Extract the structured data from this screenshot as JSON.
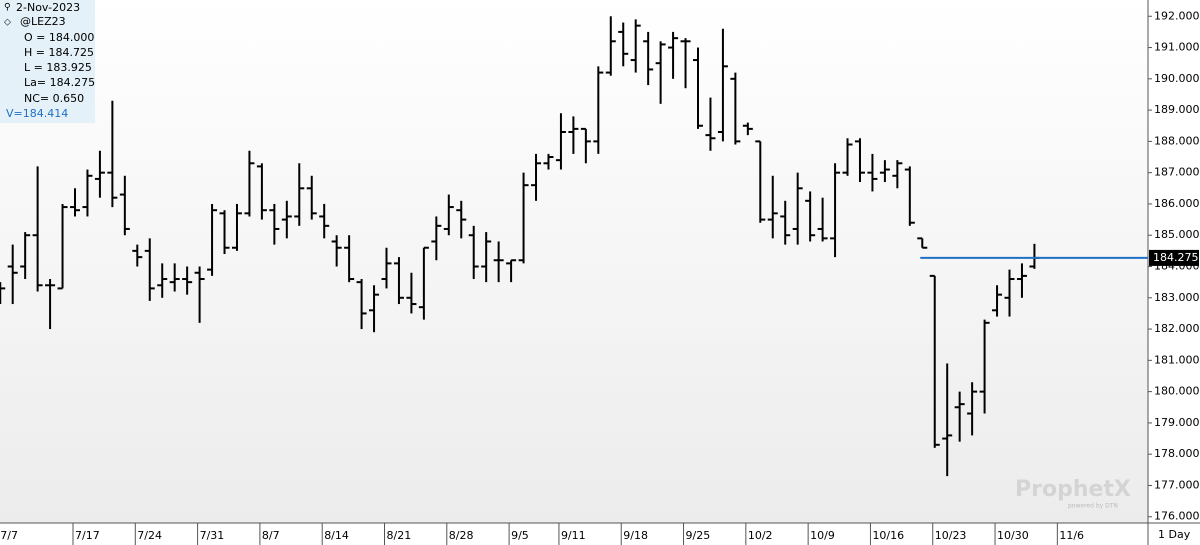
{
  "chart_data": {
    "type": "ohlc",
    "info": {
      "date": "2-Nov-2023",
      "symbol": "@LEZ23",
      "lines": [
        "O = 184.000",
        "H = 184.725",
        "L = 183.925",
        "La= 184.275",
        "NC= 0.650"
      ],
      "volume": "V=184.414"
    },
    "categories": [
      "7/7",
      null,
      null,
      null,
      null,
      null,
      "7/17",
      null,
      null,
      null,
      null,
      "7/24",
      null,
      null,
      null,
      null,
      "7/31",
      null,
      null,
      null,
      null,
      "8/7",
      null,
      null,
      null,
      null,
      "8/14",
      null,
      null,
      null,
      null,
      "8/21",
      null,
      null,
      null,
      null,
      "8/28",
      null,
      null,
      null,
      null,
      "9/5",
      null,
      null,
      null,
      "9/11",
      null,
      null,
      null,
      null,
      "9/18",
      null,
      null,
      null,
      null,
      "9/25",
      null,
      null,
      null,
      null,
      "10/2",
      null,
      null,
      null,
      null,
      "10/9",
      null,
      null,
      null,
      null,
      "10/16",
      null,
      null,
      null,
      null,
      "10/23",
      null,
      null,
      null,
      null,
      "10/30",
      null,
      null,
      null,
      null,
      "11/6"
    ],
    "series": {
      "color": "#000000",
      "open": [
        183.3,
        184.0,
        184.0,
        185.0,
        183.4,
        183.3,
        185.9,
        185.9,
        186.8,
        187.0,
        186.3,
        184.5,
        184.5,
        183.4,
        183.5,
        183.6,
        183.8,
        183.9,
        185.7,
        184.6,
        185.7,
        187.2,
        185.8,
        185.5,
        185.6,
        186.5,
        185.6,
        184.8,
        184.6,
        183.5,
        182.6,
        183.6,
        184.1,
        183.0,
        182.7,
        184.8,
        185.2,
        185.8,
        185.0,
        184.0,
        184.2,
        184.1,
        184.2,
        186.6,
        187.3,
        187.4,
        188.3,
        188.4,
        188.0,
        190.2,
        191.5,
        190.6,
        191.2,
        190.5,
        191.0,
        191.2,
        190.6,
        188.2,
        188.3,
        190.0,
        188.5,
        188.0,
        185.5,
        185.6,
        185.2,
        186.1,
        185.2,
        184.9,
        187.0,
        188.0,
        187.0,
        187.0,
        186.9,
        187.1,
        184.9,
        183.7,
        178.5,
        179.5,
        179.3,
        180.0,
        182.6,
        183.0,
        183.6,
        184.0,
        null,
        null
      ],
      "high": [
        183.5,
        184.7,
        185.1,
        187.2,
        183.6,
        186.0,
        186.5,
        187.1,
        187.7,
        189.3,
        186.9,
        184.7,
        184.9,
        184.1,
        184.1,
        184.0,
        184.0,
        186.0,
        185.8,
        186.0,
        187.7,
        187.3,
        186.0,
        186.1,
        187.3,
        186.9,
        186.0,
        185.0,
        185.0,
        183.6,
        183.4,
        184.6,
        184.3,
        183.8,
        184.6,
        185.6,
        186.3,
        186.1,
        185.3,
        185.1,
        184.8,
        184.2,
        187.0,
        187.6,
        187.6,
        188.9,
        188.8,
        188.4,
        190.4,
        192.0,
        191.8,
        191.9,
        191.5,
        191.2,
        191.5,
        191.3,
        191.0,
        189.4,
        191.6,
        190.2,
        188.6,
        188.0,
        186.9,
        186.1,
        187.0,
        186.4,
        186.2,
        187.3,
        188.1,
        188.1,
        187.6,
        187.4,
        187.4,
        187.2,
        184.9,
        183.7,
        180.9,
        180.0,
        180.3,
        182.3,
        183.4,
        183.9,
        184.1,
        184.725,
        null,
        null
      ],
      "low": [
        182.8,
        182.8,
        183.6,
        183.2,
        182.0,
        183.3,
        185.6,
        185.6,
        186.2,
        185.9,
        185.0,
        184.0,
        182.9,
        183.0,
        183.2,
        183.1,
        182.2,
        183.7,
        184.4,
        184.5,
        185.6,
        185.5,
        184.7,
        184.9,
        185.3,
        185.5,
        184.9,
        184.0,
        183.5,
        182.0,
        181.9,
        183.3,
        182.8,
        182.5,
        182.3,
        184.2,
        185.0,
        184.9,
        183.6,
        183.5,
        183.5,
        183.5,
        184.1,
        186.1,
        187.1,
        187.1,
        187.6,
        187.3,
        187.6,
        190.1,
        190.4,
        190.2,
        189.8,
        189.2,
        190.0,
        189.7,
        188.4,
        187.7,
        188.0,
        187.9,
        188.2,
        185.4,
        184.9,
        184.7,
        184.7,
        184.8,
        184.8,
        184.3,
        186.9,
        186.7,
        186.4,
        186.7,
        186.5,
        185.3,
        184.6,
        178.2,
        177.3,
        178.4,
        178.6,
        179.3,
        182.4,
        182.4,
        183.0,
        183.925,
        null,
        null
      ],
      "close": [
        183.3,
        183.8,
        185.0,
        183.4,
        183.4,
        185.9,
        185.8,
        186.9,
        187.0,
        186.2,
        185.2,
        184.3,
        183.3,
        183.6,
        183.6,
        183.5,
        183.6,
        185.8,
        184.6,
        185.7,
        187.3,
        185.8,
        185.2,
        185.6,
        186.5,
        185.7,
        185.3,
        184.6,
        183.6,
        182.5,
        183.1,
        184.1,
        183.0,
        182.8,
        184.6,
        185.3,
        185.9,
        185.5,
        184.0,
        184.8,
        184.2,
        184.2,
        186.6,
        187.3,
        187.5,
        188.3,
        188.4,
        188.0,
        190.2,
        191.2,
        190.8,
        191.7,
        190.3,
        191.1,
        191.3,
        191.2,
        188.5,
        188.1,
        190.4,
        188.0,
        188.4,
        185.5,
        185.7,
        185.0,
        186.5,
        185.0,
        184.9,
        187.0,
        187.9,
        187.0,
        186.8,
        187.1,
        187.3,
        185.4,
        184.6,
        178.3,
        178.6,
        179.6,
        180.0,
        182.2,
        183.1,
        183.6,
        183.7,
        184.275,
        null,
        null
      ]
    },
    "last_price": {
      "value": 184.275,
      "label": "184.275",
      "color": "#1f6fc5"
    },
    "ylim": [
      175.8,
      192.52
    ],
    "yticks": [
      {
        "value": 176,
        "label": "176.000"
      },
      {
        "value": 177,
        "label": "177.000"
      },
      {
        "value": 178,
        "label": "178.000"
      },
      {
        "value": 179,
        "label": "179.000"
      },
      {
        "value": 180,
        "label": "180.000"
      },
      {
        "value": 181,
        "label": "181.000"
      },
      {
        "value": 182,
        "label": "182.000"
      },
      {
        "value": 183,
        "label": "183.000"
      },
      {
        "value": 184,
        "label": "184.000"
      },
      {
        "value": 185,
        "label": "185.000"
      },
      {
        "value": 186,
        "label": "186.000"
      },
      {
        "value": 187,
        "label": "187.000"
      },
      {
        "value": 188,
        "label": "188.000"
      },
      {
        "value": 189,
        "label": "189.000"
      },
      {
        "value": 190,
        "label": "190.000"
      },
      {
        "value": 191,
        "label": "191.000"
      },
      {
        "value": 192,
        "label": "192.000"
      }
    ],
    "interval": "1 Day",
    "watermark": {
      "brand": "ProphetX",
      "tagline": "powered by DTN"
    },
    "grid": false
  }
}
